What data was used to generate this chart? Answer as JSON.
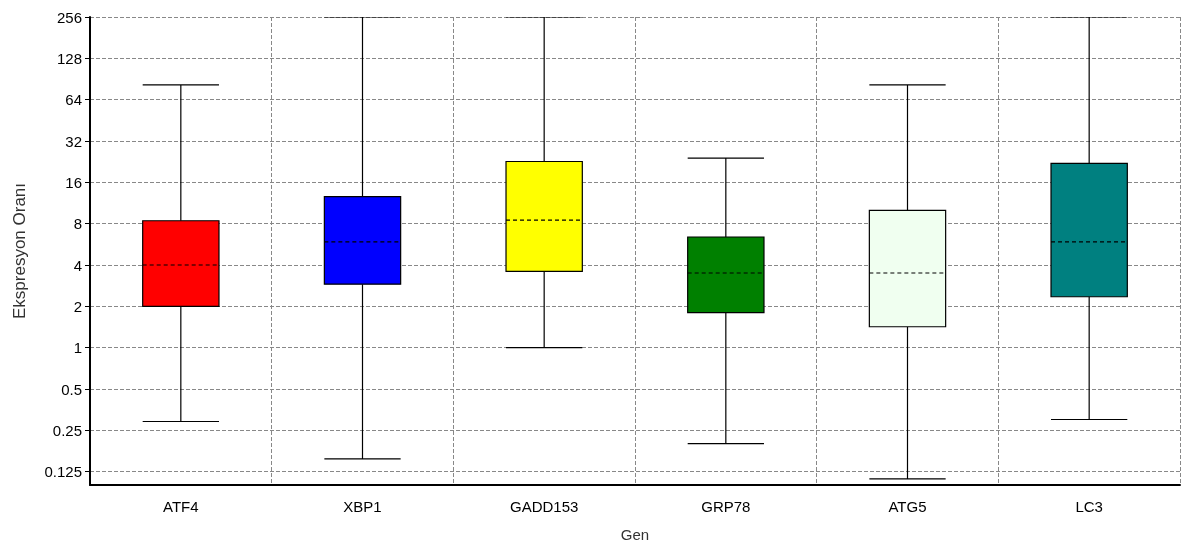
{
  "chart_data": {
    "type": "box",
    "xlabel": "Gen",
    "ylabel": "Ekspresyon Oranı",
    "categories": [
      "ATF4",
      "XBP1",
      "GADD153",
      "GRP78",
      "ATG5",
      "LC3"
    ],
    "boxes": [
      {
        "low": 0.29,
        "q1": 2,
        "median": 4,
        "q3": 8.4,
        "high": 82
      },
      {
        "low": 0.155,
        "q1": 2.9,
        "median": 5.9,
        "q3": 12.6,
        "high": 256
      },
      {
        "low": 1,
        "q1": 3.6,
        "median": 8.5,
        "q3": 22.7,
        "high": 256
      },
      {
        "low": 0.2,
        "q1": 1.8,
        "median": 3.5,
        "q3": 6.4,
        "high": 24
      },
      {
        "low": 0.111,
        "q1": 1.42,
        "median": 3.5,
        "q3": 10,
        "high": 82
      },
      {
        "low": 0.3,
        "q1": 2.35,
        "median": 5.9,
        "q3": 22,
        "high": 256
      }
    ],
    "colors": [
      "#ff0000",
      "#0000ff",
      "#ffff00",
      "#008000",
      "#f0fff0",
      "#008080"
    ],
    "log": true,
    "ylim": [
      0.1,
      256
    ],
    "yticks": [
      0.125,
      0.25,
      0.5,
      1,
      2,
      4,
      8,
      16,
      32,
      64,
      128,
      256
    ],
    "grid": true
  }
}
